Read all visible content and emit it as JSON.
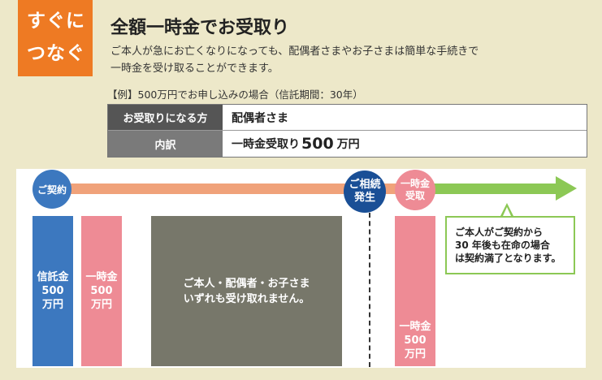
{
  "badge": {
    "line1": "すぐに",
    "line2": "つなぐ"
  },
  "header": {
    "title": "全額一時金でお受取り",
    "desc_line1": "ご本人が急にお亡くなりになっても、配偶者さまやお子さまは簡単な手続きで",
    "desc_line2": "一時金を受け取ることができます。"
  },
  "example_label": "【例】500万円でお申し込みの場合（信託期間：30年）",
  "table": {
    "row1_header": "お受取りになる方",
    "row1_value": "配偶者さま",
    "row2_header": "内訳",
    "row2_value_prefix": "一時金受取り",
    "row2_value_amount": "500",
    "row2_value_unit": "万円"
  },
  "timeline": {
    "contract": "ご契約",
    "death_line1": "ご相続",
    "death_line2": "発生",
    "lump_line1": "一時金",
    "lump_line2": "受取"
  },
  "columns": {
    "trust_line1": "信託金",
    "trust_line2": "500",
    "trust_line3": "万円",
    "lump1_line1": "一時金",
    "lump1_line2": "500",
    "lump1_line3": "万円",
    "gray_line1": "ご本人・配偶者・お子さま",
    "gray_line2": "いずれも受け取れません。",
    "lump2_line1": "一時金",
    "lump2_line2": "500",
    "lump2_line3": "万円"
  },
  "callout": {
    "line1": "ご本人がご契約から",
    "line2": "30 年後も在命の場合",
    "line3": "は契約満了となります。"
  },
  "colors": {
    "badge": "#ee7a23",
    "contract_blue": "#3c78bf",
    "death_navy": "#1a4f96",
    "pink": "#ee8b95",
    "green": "#8cc855",
    "gray": "#77776a"
  }
}
